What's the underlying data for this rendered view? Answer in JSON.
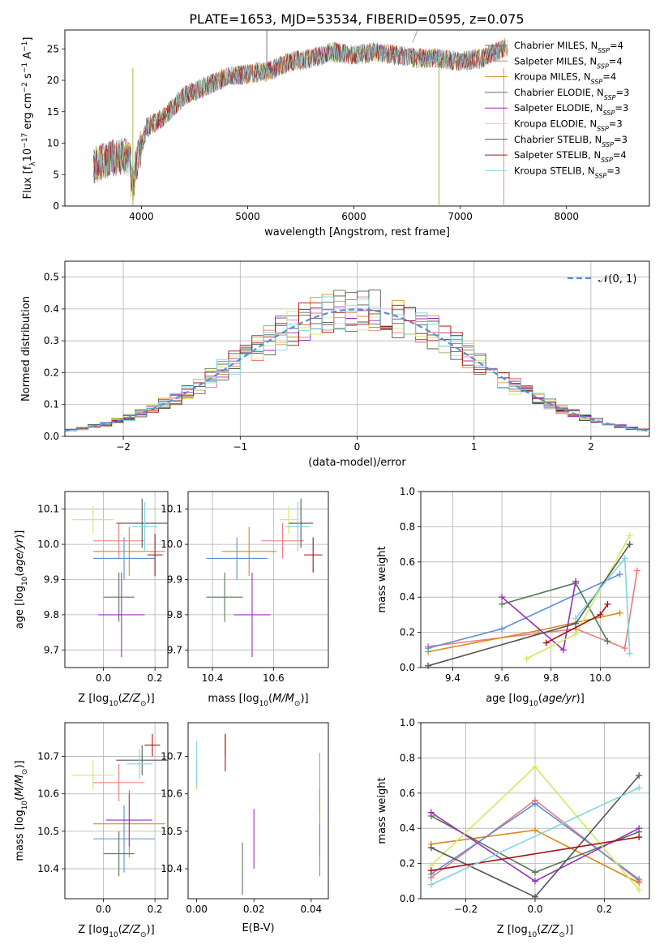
{
  "title": "PLATE=1653, MJD=53534, FIBERID=0595, z=0.075",
  "colors": [
    "#6e6e6e",
    "#f07a7a",
    "#d98a1a",
    "#557755",
    "#9a2fb8",
    "#d4e860",
    "#555555",
    "#aa1111",
    "#7fd6e0"
  ],
  "legend": [
    {
      "model": "Chabrier MILES",
      "nssp": "=4"
    },
    {
      "model": "Salpeter MILES",
      "nssp": "=4"
    },
    {
      "model": "Kroupa MILES",
      "nssp": "=4"
    },
    {
      "model": "Chabrier ELODIE",
      "nssp": "=3"
    },
    {
      "model": "Salpeter ELODIE",
      "nssp": "=3"
    },
    {
      "model": "Kroupa ELODIE",
      "nssp": "=3"
    },
    {
      "model": "Chabrier STELIB",
      "nssp": "=3"
    },
    {
      "model": "Salpeter STELIB",
      "nssp": "=4"
    },
    {
      "model": "Kroupa STELIB",
      "nssp": "=3"
    }
  ],
  "chart_data": [
    {
      "id": "spectrum",
      "type": "line",
      "xlabel": "wavelength [Angstrom, rest frame]",
      "ylabel": "Flux [f_λ 10^-17 erg cm^-2 s^-1 A^-1]",
      "xlim": [
        3280,
        8780
      ],
      "ylim": [
        0,
        28
      ],
      "xticks": [
        4000,
        5000,
        6000,
        7000,
        8000
      ],
      "yticks": [
        0,
        5,
        10,
        15,
        20,
        25
      ],
      "grid": false,
      "legend_position": "top-right",
      "series_x": [
        3550,
        3700,
        3850,
        3950,
        4050,
        4200,
        4400,
        4600,
        4800,
        5000,
        5200,
        5400,
        5600,
        5800,
        6000,
        6200,
        6400,
        6600,
        6800,
        7000,
        7200,
        7400,
        7450
      ],
      "series_y": [
        6.5,
        7.5,
        8.0,
        6.5,
        12.5,
        14.0,
        17.5,
        19.0,
        20.5,
        21.0,
        21.5,
        23.0,
        23.5,
        24.5,
        24.0,
        24.5,
        24.0,
        23.5,
        23.5,
        23.0,
        23.5,
        25.0,
        25.5
      ]
    },
    {
      "id": "residuals",
      "type": "histogram",
      "xlabel": "(data-model)/error",
      "ylabel": "Normed distribution",
      "xlim": [
        -2.5,
        2.5
      ],
      "ylim": [
        0,
        0.55
      ],
      "xticks": [
        -2,
        -1,
        0,
        1,
        2
      ],
      "yticks": [
        0.0,
        0.1,
        0.2,
        0.3,
        0.4,
        0.5
      ],
      "grid": true,
      "legend_position": "top-right",
      "reference_label": "𝒩(0, 1)",
      "reference_color": "#5b8fd6",
      "bins_left": -2.5,
      "bin_width": 0.1
    },
    {
      "id": "age-vs-Z",
      "type": "scatter",
      "xlabel": "Z [log10(Z/Z⊙)]",
      "ylabel": "age [log10(age/yr)]",
      "xlim": [
        -0.15,
        0.25
      ],
      "ylim": [
        9.65,
        10.15
      ],
      "xticks": [
        0.0,
        0.2
      ],
      "yticks": [
        9.7,
        9.8,
        9.9,
        10.0,
        10.1
      ],
      "grid": true,
      "points": [
        {
          "x": 0.06,
          "y": 10.01,
          "ex": 0.1,
          "ey": 0.05,
          "c": "#f07a7a"
        },
        {
          "x": 0.1,
          "y": 9.98,
          "ex": 0.14,
          "ey": 0.07,
          "c": "#d98a1a"
        },
        {
          "x": 0.08,
          "y": 9.96,
          "ex": 0.12,
          "ey": 0.06,
          "c": "#5b8fd6"
        },
        {
          "x": 0.06,
          "y": 9.85,
          "ex": 0.06,
          "ey": 0.07,
          "c": "#557755"
        },
        {
          "x": 0.07,
          "y": 9.8,
          "ex": 0.09,
          "ey": 0.12,
          "c": "#9a2fb8"
        },
        {
          "x": -0.04,
          "y": 10.07,
          "ex": 0.08,
          "ey": 0.04,
          "c": "#d4e860"
        },
        {
          "x": 0.15,
          "y": 10.06,
          "ex": 0.1,
          "ey": 0.07,
          "c": "#555555"
        },
        {
          "x": 0.2,
          "y": 9.97,
          "ex": 0.03,
          "ey": 0.06,
          "c": "#aa1111"
        },
        {
          "x": 0.16,
          "y": 10.05,
          "ex": 0.05,
          "ey": 0.07,
          "c": "#7fd6e0"
        }
      ]
    },
    {
      "id": "age-vs-mass",
      "type": "scatter",
      "xlabel": "mass [log10(M/M⊙)]",
      "ylabel": "",
      "xlim": [
        10.32,
        10.78
      ],
      "ylim": [
        9.65,
        10.15
      ],
      "xticks": [
        10.4,
        10.6
      ],
      "yticks": [
        9.7,
        9.8,
        9.9,
        10.0,
        10.1
      ],
      "grid": true,
      "points": [
        {
          "x": 10.63,
          "y": 10.01,
          "ex": 0.07,
          "ey": 0.05,
          "c": "#f07a7a"
        },
        {
          "x": 10.52,
          "y": 9.98,
          "ex": 0.09,
          "ey": 0.07,
          "c": "#d98a1a"
        },
        {
          "x": 10.48,
          "y": 9.96,
          "ex": 0.1,
          "ey": 0.06,
          "c": "#5b8fd6"
        },
        {
          "x": 10.44,
          "y": 9.85,
          "ex": 0.06,
          "ey": 0.07,
          "c": "#557755"
        },
        {
          "x": 10.53,
          "y": 9.8,
          "ex": 0.06,
          "ey": 0.12,
          "c": "#9a2fb8"
        },
        {
          "x": 10.65,
          "y": 10.07,
          "ex": 0.03,
          "ey": 0.04,
          "c": "#d4e860"
        },
        {
          "x": 10.69,
          "y": 10.06,
          "ex": 0.04,
          "ey": 0.07,
          "c": "#555555"
        },
        {
          "x": 10.73,
          "y": 9.97,
          "ex": 0.03,
          "ey": 0.05,
          "c": "#aa1111"
        },
        {
          "x": 10.68,
          "y": 10.05,
          "ex": 0.04,
          "ey": 0.07,
          "c": "#7fd6e0"
        }
      ]
    },
    {
      "id": "weight-vs-age",
      "type": "line",
      "xlabel": "age [log10(age/yr)]",
      "ylabel": "mass weight",
      "xlim": [
        9.27,
        10.2
      ],
      "ylim": [
        0,
        1
      ],
      "xticks": [
        9.4,
        9.6,
        9.8,
        10.0
      ],
      "yticks": [
        0.0,
        0.2,
        0.4,
        0.6,
        0.8,
        1.0
      ],
      "grid": true,
      "series": [
        {
          "c": "#f07a7a",
          "x": [
            9.3,
            9.9,
            10.1,
            10.15
          ],
          "y": [
            0.12,
            0.22,
            0.11,
            0.55
          ]
        },
        {
          "c": "#d98a1a",
          "x": [
            9.3,
            9.75,
            10.08
          ],
          "y": [
            0.09,
            0.21,
            0.31
          ]
        },
        {
          "c": "#5b8fd6",
          "x": [
            9.3,
            9.6,
            10.08
          ],
          "y": [
            0.11,
            0.22,
            0.53
          ]
        },
        {
          "c": "#557755",
          "x": [
            9.6,
            9.9,
            10.03
          ],
          "y": [
            0.36,
            0.48,
            0.15
          ]
        },
        {
          "c": "#9a2fb8",
          "x": [
            9.6,
            9.85,
            9.9
          ],
          "y": [
            0.4,
            0.1,
            0.49
          ]
        },
        {
          "c": "#d4e860",
          "x": [
            9.7,
            9.9,
            10.12
          ],
          "y": [
            0.05,
            0.19,
            0.75
          ]
        },
        {
          "c": "#555555",
          "x": [
            9.3,
            9.9,
            10.12
          ],
          "y": [
            0.01,
            0.25,
            0.7
          ]
        },
        {
          "c": "#aa1111",
          "x": [
            9.78,
            10.0,
            10.03
          ],
          "y": [
            0.14,
            0.3,
            0.36
          ]
        },
        {
          "c": "#7fd6e0",
          "x": [
            9.9,
            10.1,
            10.12
          ],
          "y": [
            0.28,
            0.62,
            0.08
          ]
        }
      ]
    },
    {
      "id": "mass-vs-Z",
      "type": "scatter",
      "xlabel": "Z [log10(Z/Z⊙)]",
      "ylabel": "mass [log10(M/M⊙)]",
      "xlim": [
        -0.15,
        0.25
      ],
      "ylim": [
        10.32,
        10.79
      ],
      "xticks": [
        0.0,
        0.2
      ],
      "yticks": [
        10.4,
        10.5,
        10.6,
        10.7
      ],
      "grid": true,
      "points": [
        {
          "x": 0.06,
          "y": 10.63,
          "ex": 0.1,
          "ey": 0.05,
          "c": "#f07a7a"
        },
        {
          "x": 0.1,
          "y": 10.52,
          "ex": 0.14,
          "ey": 0.09,
          "c": "#d98a1a"
        },
        {
          "x": 0.08,
          "y": 10.48,
          "ex": 0.12,
          "ey": 0.09,
          "c": "#5b8fd6"
        },
        {
          "x": 0.06,
          "y": 10.44,
          "ex": 0.06,
          "ey": 0.06,
          "c": "#557755"
        },
        {
          "x": 0.1,
          "y": 10.53,
          "ex": 0.09,
          "ey": 0.07,
          "c": "#9a2fb8"
        },
        {
          "x": -0.04,
          "y": 10.65,
          "ex": 0.08,
          "ey": 0.04,
          "c": "#d4e860"
        },
        {
          "x": 0.15,
          "y": 10.69,
          "ex": 0.1,
          "ey": 0.04,
          "c": "#555555"
        },
        {
          "x": 0.19,
          "y": 10.73,
          "ex": 0.03,
          "ey": 0.03,
          "c": "#aa1111"
        },
        {
          "x": 0.14,
          "y": 10.68,
          "ex": 0.05,
          "ey": 0.04,
          "c": "#7fd6e0"
        }
      ]
    },
    {
      "id": "mass-vs-ebv",
      "type": "scatter",
      "xlabel": "E(B-V)",
      "ylabel": "",
      "xlim": [
        -0.003,
        0.046
      ],
      "ylim": [
        10.32,
        10.79
      ],
      "xticks": [
        0.0,
        0.02,
        0.04
      ],
      "yticks": [
        10.4,
        10.5,
        10.6,
        10.7
      ],
      "grid": false,
      "points": [
        {
          "x": 0.043,
          "y": 10.63,
          "ex": 0,
          "ey": 0.08,
          "c": "#f07a7a"
        },
        {
          "x": 0.043,
          "y": 10.52,
          "ex": 0,
          "ey": 0.09,
          "c": "#d98a1a"
        },
        {
          "x": 0.043,
          "y": 10.45,
          "ex": 0,
          "ey": 0.07,
          "c": "#5b8fd6"
        },
        {
          "x": 0.016,
          "y": 10.4,
          "ex": 0,
          "ey": 0.07,
          "c": "#557755"
        },
        {
          "x": 0.02,
          "y": 10.48,
          "ex": 0,
          "ey": 0.08,
          "c": "#9a2fb8"
        },
        {
          "x": 0.0,
          "y": 10.65,
          "ex": 0,
          "ey": 0.04,
          "c": "#d4e860"
        },
        {
          "x": 0.01,
          "y": 10.73,
          "ex": 0,
          "ey": 0.03,
          "c": "#555555"
        },
        {
          "x": 0.01,
          "y": 10.71,
          "ex": 0,
          "ey": 0.05,
          "c": "#aa1111"
        },
        {
          "x": 0.0,
          "y": 10.68,
          "ex": 0,
          "ey": 0.06,
          "c": "#7fd6e0"
        }
      ]
    },
    {
      "id": "weight-vs-Z",
      "type": "line",
      "xlabel": "Z [log10(Z/Z⊙)]",
      "ylabel": "mass weight",
      "xlim": [
        -0.33,
        0.33
      ],
      "ylim": [
        0,
        1
      ],
      "xticks": [
        -0.2,
        0.0,
        0.2
      ],
      "yticks": [
        0.0,
        0.2,
        0.4,
        0.6,
        0.8,
        1.0
      ],
      "grid": true,
      "series": [
        {
          "c": "#f07a7a",
          "x": [
            -0.3,
            0.0,
            0.3
          ],
          "y": [
            0.12,
            0.56,
            0.1
          ]
        },
        {
          "c": "#d98a1a",
          "x": [
            -0.3,
            0.0,
            0.3
          ],
          "y": [
            0.31,
            0.39,
            0.09
          ]
        },
        {
          "c": "#5b8fd6",
          "x": [
            -0.3,
            0.0,
            0.3
          ],
          "y": [
            0.14,
            0.54,
            0.11
          ]
        },
        {
          "c": "#557755",
          "x": [
            -0.3,
            0.0,
            0.3
          ],
          "y": [
            0.47,
            0.15,
            0.38
          ]
        },
        {
          "c": "#9a2fb8",
          "x": [
            -0.3,
            0.0,
            0.3
          ],
          "y": [
            0.49,
            0.1,
            0.4
          ]
        },
        {
          "c": "#d4e860",
          "x": [
            -0.3,
            0.0,
            0.3
          ],
          "y": [
            0.19,
            0.75,
            0.05
          ]
        },
        {
          "c": "#555555",
          "x": [
            -0.3,
            0.0,
            0.3
          ],
          "y": [
            0.29,
            0.01,
            0.7
          ]
        },
        {
          "c": "#aa1111",
          "x": [
            -0.3,
            0.3
          ],
          "y": [
            0.16,
            0.35
          ]
        },
        {
          "c": "#7fd6e0",
          "x": [
            -0.3,
            0.3
          ],
          "y": [
            0.08,
            0.63
          ]
        }
      ]
    }
  ]
}
